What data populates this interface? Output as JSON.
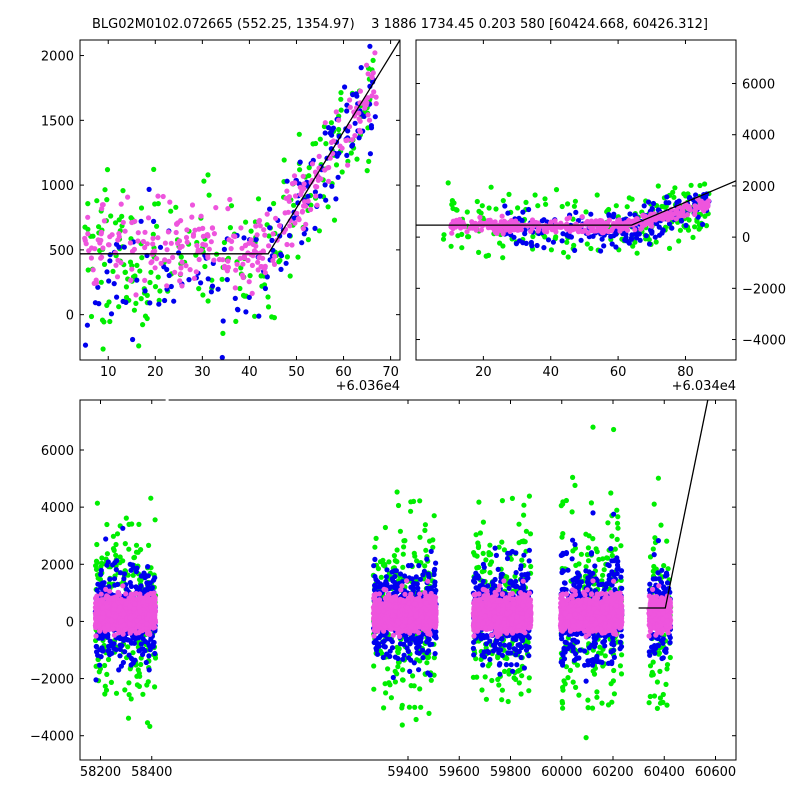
{
  "title": "BLG02M0102.072665 (552.25, 1354.97)    3 1886 1734.45 0.203 580 [60424.668, 60426.312]",
  "colors": {
    "green": "#00ee00",
    "blue": "#0000ee",
    "magenta": "#ee55dd",
    "model": "#000000"
  },
  "chart_data": [
    {
      "type": "scatter",
      "panel": "top-left",
      "x_offset_label": "+6.036e4",
      "xlim": [
        4,
        72
      ],
      "ylim": [
        -350,
        2120
      ],
      "xticks": [
        10,
        20,
        30,
        40,
        50,
        60,
        70
      ],
      "xtick_labels": [
        "10",
        "20",
        "30",
        "40",
        "50",
        "60",
        "70"
      ],
      "yticks": [
        0,
        500,
        1000,
        1500,
        2000
      ],
      "ytick_labels": [
        "0",
        "500",
        "1000",
        "1500",
        "2000"
      ],
      "ytick_side": "left",
      "model_line": {
        "x": [
          4,
          44,
          72
        ],
        "y": [
          470,
          470,
          2120
        ]
      },
      "series": [
        {
          "color": "green",
          "groups": [
            {
              "x": [
                5,
                20
              ],
              "y_base": 430,
              "y_slope": 0,
              "spread": 600,
              "count": 80
            },
            {
              "x": [
                20,
                44
              ],
              "y_base": 430,
              "y_slope": 0,
              "spread": 550,
              "count": 70
            },
            {
              "x": [
                44,
                67
              ],
              "y_base": 470,
              "y_slope": 58,
              "spread": 500,
              "count": 90
            }
          ]
        },
        {
          "color": "blue",
          "groups": [
            {
              "x": [
                5,
                44
              ],
              "y_base": 300,
              "y_slope": 0,
              "spread": 500,
              "count": 70
            },
            {
              "x": [
                44,
                67
              ],
              "y_base": 470,
              "y_slope": 58,
              "spread": 380,
              "count": 95
            }
          ]
        },
        {
          "color": "magenta",
          "groups": [
            {
              "x": [
                5,
                44
              ],
              "y_base": 500,
              "y_slope": 0,
              "spread": 330,
              "count": 190
            },
            {
              "x": [
                44,
                67
              ],
              "y_base": 470,
              "y_slope": 58,
              "spread": 250,
              "count": 110
            }
          ]
        }
      ]
    },
    {
      "type": "scatter",
      "panel": "top-right",
      "x_offset_label": "+6.034e4",
      "xlim": [
        0,
        95
      ],
      "ylim": [
        -4800,
        7700
      ],
      "xticks": [
        20,
        40,
        60,
        80
      ],
      "xtick_labels": [
        "20",
        "40",
        "60",
        "80"
      ],
      "yticks": [
        -4000,
        -2000,
        0,
        2000,
        4000,
        6000
      ],
      "ytick_labels": [
        "−4000",
        "−2000",
        "0",
        "2000",
        "4000",
        "6000"
      ],
      "ytick_side": "right",
      "model_line": {
        "x": [
          0,
          64,
          95
        ],
        "y": [
          470,
          470,
          2200
        ]
      },
      "series": [
        {
          "color": "green",
          "groups": [
            {
              "x": [
                8,
                64
              ],
              "y_base": 500,
              "y_slope": 0,
              "spread": 1300,
              "count": 110
            },
            {
              "x": [
                64,
                87
              ],
              "y_base": 470,
              "y_slope": 58,
              "spread": 1100,
              "count": 120
            }
          ]
        },
        {
          "color": "blue",
          "groups": [
            {
              "x": [
                26,
                64
              ],
              "y_base": 300,
              "y_slope": 0,
              "spread": 800,
              "count": 120
            },
            {
              "x": [
                64,
                87
              ],
              "y_base": 470,
              "y_slope": 58,
              "spread": 700,
              "count": 110
            }
          ]
        },
        {
          "color": "magenta",
          "groups": [
            {
              "x": [
                10,
                64
              ],
              "y_base": 450,
              "y_slope": 0,
              "spread": 250,
              "count": 260
            },
            {
              "x": [
                64,
                87
              ],
              "y_base": 470,
              "y_slope": 58,
              "spread": 280,
              "count": 120
            }
          ]
        }
      ]
    },
    {
      "type": "scatter",
      "panel": "bottom",
      "xlim": [
        58120,
        60680
      ],
      "ylim": [
        -4850,
        7750
      ],
      "xticks": [
        58200,
        58400,
        59400,
        59600,
        59800,
        60000,
        60200,
        60400,
        60600
      ],
      "xtick_labels": [
        "58200",
        "58400",
        "59400",
        "59600",
        "59800",
        "60000",
        "60200",
        "60400",
        "60600"
      ],
      "yticks": [
        -4000,
        -2000,
        0,
        2000,
        4000,
        6000
      ],
      "ytick_labels": [
        "−4000",
        "−2000",
        "0",
        "2000",
        "4000",
        "6000"
      ],
      "ytick_side": "left",
      "axis_break_x": 58460,
      "model_line": {
        "x": [
          60300,
          60404,
          60570
        ],
        "y": [
          470,
          470,
          7750
        ]
      },
      "seasons": [
        [
          58180,
          58415
        ],
        [
          59265,
          59510
        ],
        [
          59655,
          59880
        ],
        [
          59995,
          60235
        ],
        [
          60340,
          60425
        ]
      ],
      "series": [
        {
          "color": "green",
          "spread": 2400,
          "count": 260
        },
        {
          "color": "blue",
          "spread": 1300,
          "count": 420
        },
        {
          "color": "magenta",
          "spread": 430,
          "count": 1300
        }
      ]
    }
  ]
}
